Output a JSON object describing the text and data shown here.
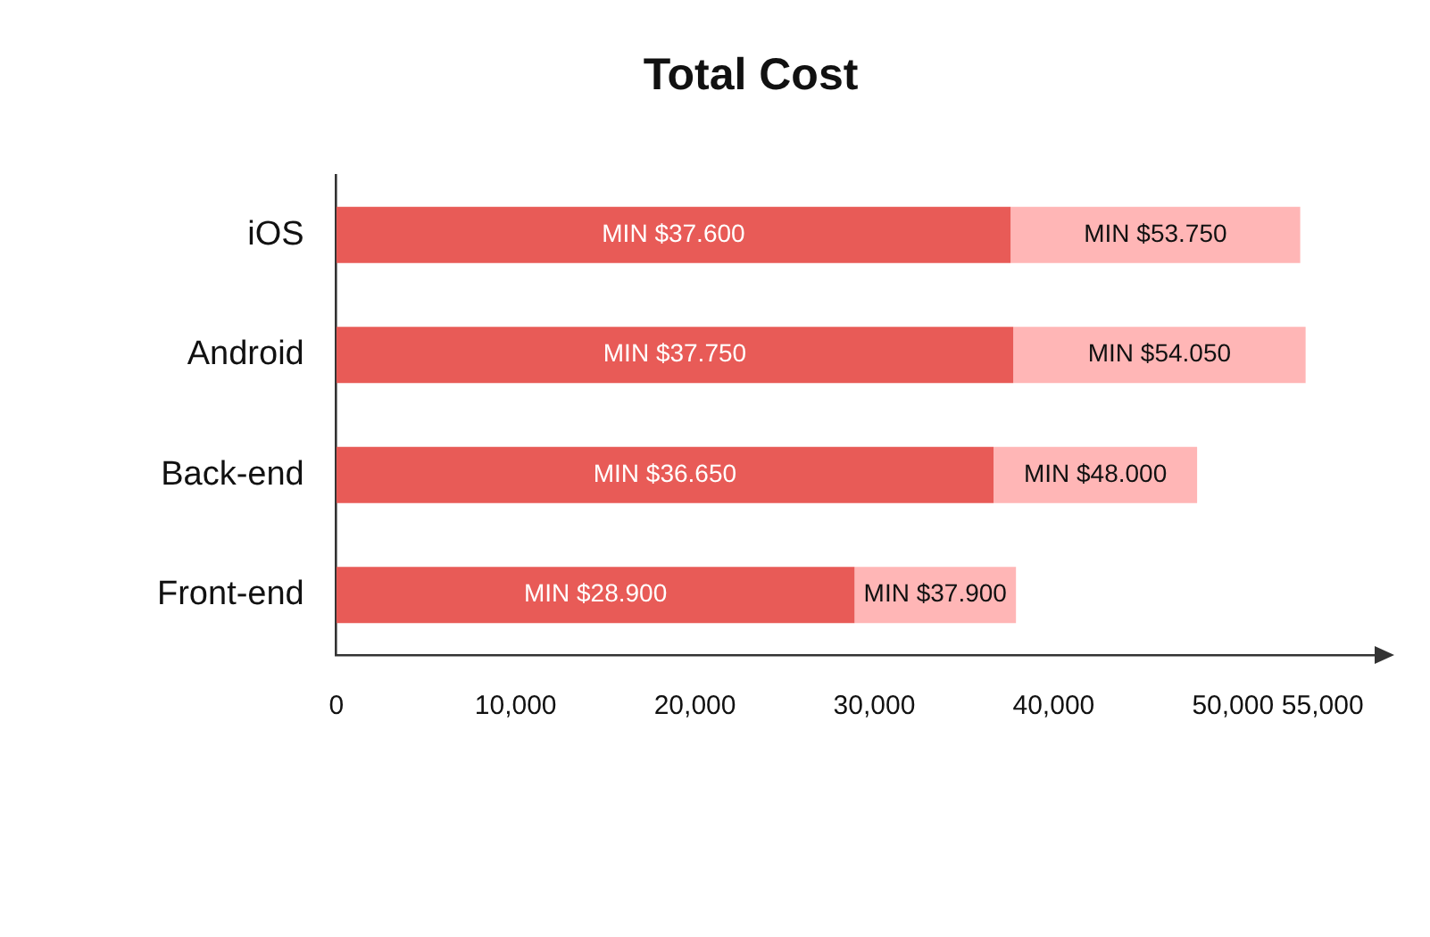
{
  "chart_data": {
    "type": "bar",
    "title": "Total Cost",
    "orientation": "horizontal",
    "stacked": true,
    "categories": [
      "iOS",
      "Android",
      "Back-end",
      "Front-end"
    ],
    "series": [
      {
        "color": "#e85b57",
        "values": [
          37600,
          37750,
          36650,
          28900
        ],
        "value_labels": [
          "MIN $37.600",
          "MIN $37.750",
          "MIN $36.650",
          "MIN $28.900"
        ]
      },
      {
        "color": "#ffb6b6",
        "values": [
          16150,
          16300,
          11350,
          9000
        ]
      }
    ],
    "totals": [
      "MIN $53.750",
      "MIN $54.050",
      "MIN $48.000",
      "MIN $37.900"
    ],
    "xlim": [
      0,
      58000
    ],
    "xticks": [
      0,
      {
        "value": 10000,
        "label": "10,000"
      },
      {
        "value": 20000,
        "label": "20,000"
      },
      {
        "value": 30000,
        "label": "30,000"
      },
      {
        "value": 40000,
        "label": "40,000"
      },
      {
        "value": 50000,
        "label": "50,000"
      },
      {
        "value": 55000,
        "label": "55,000"
      }
    ],
    "grid": false
  }
}
